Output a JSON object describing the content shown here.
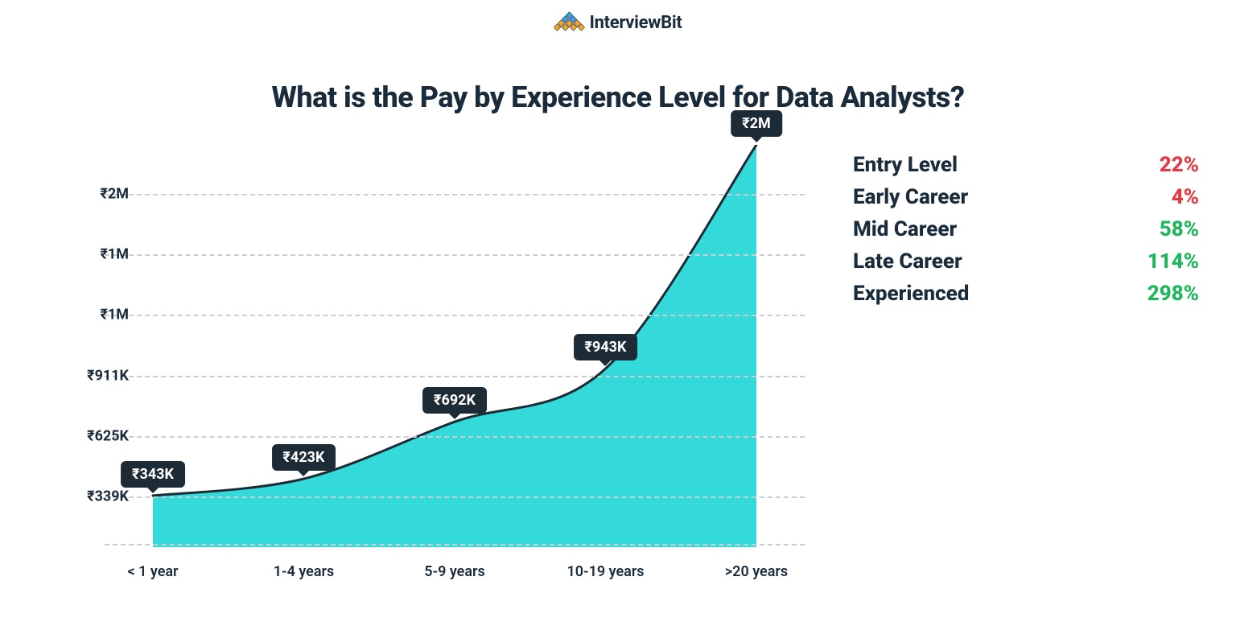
{
  "brand": {
    "name": "InterviewBit",
    "logo_colors": {
      "top": "#3aa0e0",
      "mid": "#f5a623",
      "low": "#f5a623",
      "outline": "#1a2b3c"
    }
  },
  "title": "What is the Pay by Experience Level for Data Analysts?",
  "chart": {
    "type": "area",
    "background_color": "#ffffff",
    "grid_color": "#c9ced3",
    "fill_color": "#34d9d9",
    "line_color": "#1d2b36",
    "line_width": 3,
    "y_axis": {
      "ticks": [
        {
          "label": "₹339K",
          "value": 339000
        },
        {
          "label": "₹625K",
          "value": 625000
        },
        {
          "label": "₹911K",
          "value": 911000
        },
        {
          "label": "₹1M",
          "value": 1197000
        },
        {
          "label": "₹1M",
          "value": 1483000
        },
        {
          "label": "₹2M",
          "value": 1769000
        }
      ],
      "min": 100000,
      "max": 2000000,
      "label_fontsize": 18,
      "label_fontweight": 700,
      "label_color": "#1a2b3c"
    },
    "x_axis": {
      "labels": [
        "< 1 year",
        "1-4 years",
        "5-9 years",
        "10-19 years",
        ">20 years"
      ],
      "label_fontsize": 18,
      "label_fontweight": 600,
      "label_color": "#1a2b3c"
    },
    "points": [
      {
        "x_index": 0,
        "value": 343000,
        "label": "₹343K"
      },
      {
        "x_index": 1,
        "value": 423000,
        "label": "₹423K"
      },
      {
        "x_index": 2,
        "value": 692000,
        "label": "₹692K"
      },
      {
        "x_index": 3,
        "value": 943000,
        "label": "₹943K"
      },
      {
        "x_index": 4,
        "value": 2000000,
        "label": "₹2M"
      }
    ],
    "tooltip": {
      "bg": "#1d2b36",
      "text_color": "#ffffff",
      "fontsize": 18,
      "fontweight": 700,
      "radius": 6
    }
  },
  "legend": {
    "label_color": "#1a2b3c",
    "label_fontsize": 26,
    "label_fontweight": 800,
    "value_fontsize": 26,
    "value_fontweight": 800,
    "colors": {
      "neg": "#e63946",
      "pos": "#1fb65c"
    },
    "rows": [
      {
        "label": "Entry Level",
        "value": "22%",
        "direction": "neg"
      },
      {
        "label": "Early Career",
        "value": "4%",
        "direction": "neg"
      },
      {
        "label": "Mid Career",
        "value": "58%",
        "direction": "pos"
      },
      {
        "label": "Late Career",
        "value": "114%",
        "direction": "pos"
      },
      {
        "label": "Experienced",
        "value": "298%",
        "direction": "pos"
      }
    ]
  }
}
